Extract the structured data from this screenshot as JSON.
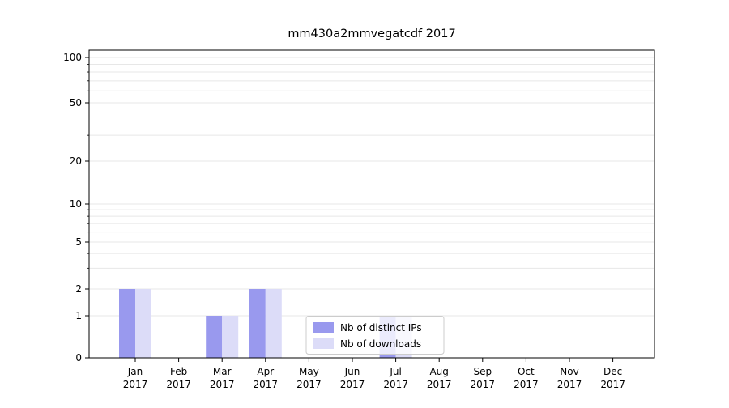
{
  "chart_data": {
    "type": "bar",
    "title": "mm430a2mmvegatcdf 2017",
    "categories": [
      "Jan",
      "Feb",
      "Mar",
      "Apr",
      "May",
      "Jun",
      "Jul",
      "Aug",
      "Sep",
      "Oct",
      "Nov",
      "Dec"
    ],
    "category_year": "2017",
    "series": [
      {
        "name": "Nb of distinct IPs",
        "color": "#9999ee",
        "values": [
          2,
          0,
          1,
          2,
          0,
          0,
          1,
          0,
          0,
          0,
          0,
          0
        ]
      },
      {
        "name": "Nb of downloads",
        "color": "#dcdcf8",
        "values": [
          2,
          0,
          1,
          2,
          0,
          0,
          1,
          0,
          0,
          0,
          0,
          0
        ]
      }
    ],
    "y_axis": {
      "tick_labels": [
        "0",
        "1",
        "2",
        "5",
        "10",
        "20",
        "50",
        "100"
      ],
      "tick_values": [
        0,
        1,
        2,
        5,
        10,
        20,
        50,
        100
      ],
      "minor_gridlines": [
        3,
        4,
        6,
        7,
        8,
        9,
        30,
        40,
        60,
        70,
        80,
        90
      ],
      "scale": "log-like"
    },
    "legend": {
      "entries": [
        "Nb of distinct IPs",
        "Nb of downloads"
      ],
      "position": "inside-bottom-center"
    },
    "colors": {
      "grid": "#e7e7e7",
      "axis": "#000000",
      "legend_border": "#cccccc",
      "legend_bg": "rgba(255,255,255,0.8)"
    }
  }
}
